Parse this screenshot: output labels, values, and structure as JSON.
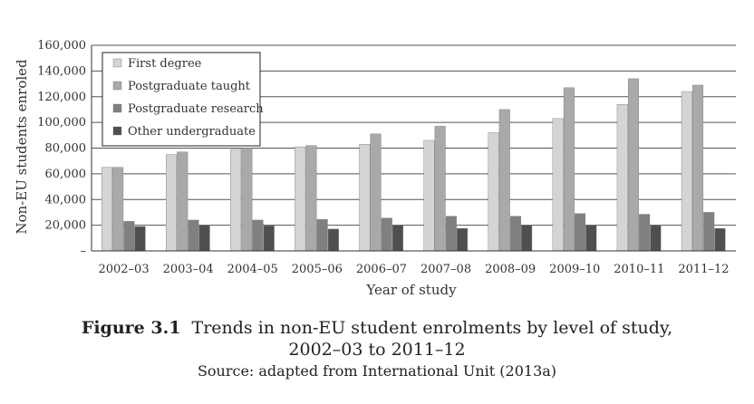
{
  "chart_data": {
    "type": "bar",
    "title": "",
    "xlabel": "Year of study",
    "ylabel": "Non-EU students enroled",
    "ylim": [
      0,
      160000
    ],
    "yticks": [
      "–",
      "20,000",
      "40,000",
      "60,000",
      "80,000",
      "100,000",
      "120,000",
      "140,000",
      "160,000"
    ],
    "categories": [
      "2002–03",
      "2003–04",
      "2004–05",
      "2005–06",
      "2006–07",
      "2007–08",
      "2008–09",
      "2009–10",
      "2010–11",
      "2011–12"
    ],
    "series": [
      {
        "name": "First degree",
        "color": "#d4d4d4",
        "values": [
          65000,
          75000,
          79000,
          81000,
          83000,
          86000,
          92000,
          103000,
          114000,
          124000
        ]
      },
      {
        "name": "Postgraduate taught",
        "color": "#a9a9a9",
        "values": [
          65000,
          77000,
          80000,
          82000,
          91000,
          97000,
          110000,
          127000,
          134000,
          129000
        ]
      },
      {
        "name": "Postgraduate research",
        "color": "#808080",
        "values": [
          23000,
          24000,
          24000,
          24500,
          25500,
          27000,
          27000,
          29000,
          28500,
          30000
        ]
      },
      {
        "name": "Other undergraduate",
        "color": "#4f4f4f",
        "values": [
          19000,
          20000,
          19500,
          17000,
          20000,
          17500,
          20000,
          20000,
          20000,
          17500
        ]
      }
    ],
    "legend_position": "top-left",
    "grid": true
  },
  "caption": {
    "figure_label": "Figure 3.1",
    "title_line1": "Trends in non-EU student enrolments by level of study,",
    "title_line2": "2002–03 to 2011–12",
    "source": "Source: adapted from International Unit (2013a)"
  }
}
